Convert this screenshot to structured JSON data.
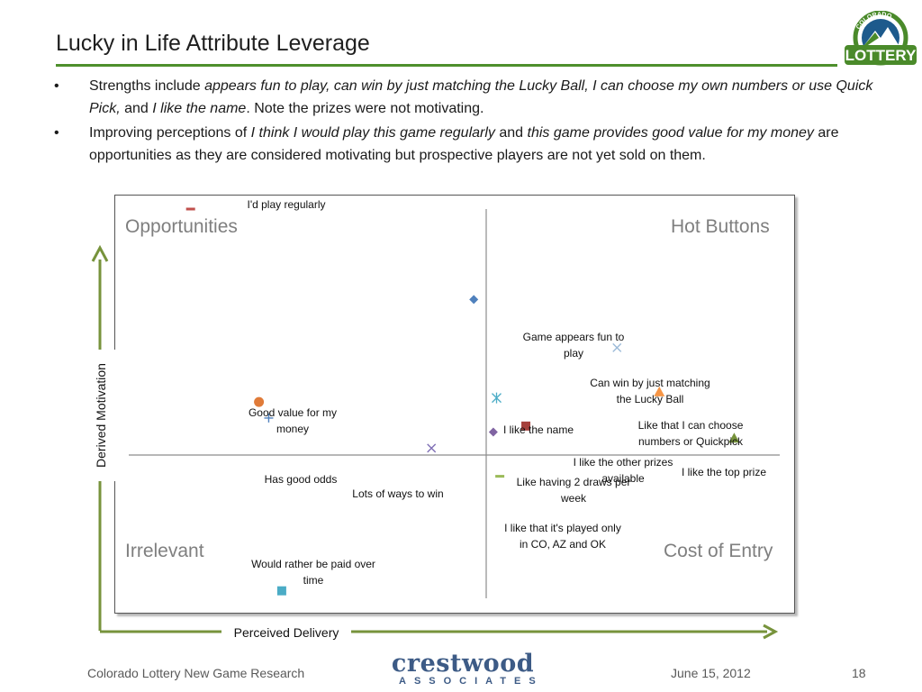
{
  "slide": {
    "title": "Lucky in Life Attribute Leverage",
    "bullet_glyph": "•",
    "bullets": [
      {
        "parts": [
          {
            "text": "Strengths include ",
            "italic": false
          },
          {
            "text": "appears fun to play, can win by just matching the Lucky Ball, I can choose my own numbers or use Quick Pick,",
            "italic": true
          },
          {
            "text": " and ",
            "italic": false
          },
          {
            "text": "I like the name",
            "italic": true
          },
          {
            "text": ".  Note the prizes were not motivating.",
            "italic": false
          }
        ]
      },
      {
        "parts": [
          {
            "text": "Improving perceptions of ",
            "italic": false
          },
          {
            "text": "I think I would play this game regularly",
            "italic": true
          },
          {
            "text": " and ",
            "italic": false
          },
          {
            "text": "this game provides good value for my money",
            "italic": true
          },
          {
            "text": " are opportunities as they are considered motivating but prospective players are not yet sold on them.",
            "italic": false
          }
        ]
      }
    ]
  },
  "logo": {
    "top_text": "COLORADO",
    "main_text": "LOTTERY",
    "colors": {
      "green": "#4a8a2a",
      "blue": "#1d5a8c",
      "white": "#ffffff"
    }
  },
  "axes": {
    "y_label": "Derived Motivation",
    "x_label": "Perceived Delivery",
    "arrow_color": "#77933c"
  },
  "chart_data": {
    "type": "scatter",
    "xlabel": "Perceived Delivery",
    "ylabel": "Derived Motivation",
    "xlim": [
      -1,
      1
    ],
    "ylim": [
      -1,
      1
    ],
    "grid": false,
    "quadrants": {
      "top_left": "Opportunities",
      "top_right": "Hot Buttons",
      "bottom_left": "Irrelevant",
      "bottom_right": "Cost of Entry"
    },
    "points": [
      {
        "label": "I'd play regularly",
        "x": -0.81,
        "y": 1.0,
        "marker": "dash",
        "color": "#c0504d"
      },
      {
        "label": "Game appears fun to play",
        "x": 0.06,
        "y": 0.55,
        "marker": "diamond",
        "color": "#4f81bd"
      },
      {
        "label": "Can win by just matching the Lucky Ball",
        "x": 0.5,
        "y": 0.31,
        "marker": "x",
        "color": "#9bbad8"
      },
      {
        "label": "Like that I can choose numbers or Quickpick",
        "x": 0.63,
        "y": 0.09,
        "marker": "triangle",
        "color": "#f79646"
      },
      {
        "label": "I like the name",
        "x": 0.13,
        "y": 0.06,
        "marker": "star",
        "color": "#4bacc6"
      },
      {
        "label": "Good value for my money",
        "x": -0.6,
        "y": 0.04,
        "marker": "circle",
        "color": "#e07b39"
      },
      {
        "label": "Has good odds",
        "x": -0.57,
        "y": -0.04,
        "marker": "plus",
        "color": "#4f81bd"
      },
      {
        "label": "I like the other prizes available",
        "x": 0.22,
        "y": -0.08,
        "marker": "square",
        "color": "#a5403c"
      },
      {
        "label": "Like having 2 draws per week",
        "x": 0.12,
        "y": -0.11,
        "marker": "diamond",
        "color": "#8064a2"
      },
      {
        "label": "I like the top prize",
        "x": 0.86,
        "y": -0.14,
        "marker": "triangle",
        "color": "#77933c"
      },
      {
        "label": "Lots of ways to win",
        "x": -0.07,
        "y": -0.19,
        "marker": "x",
        "color": "#7f6fb5"
      },
      {
        "label": "I like that it's played only in CO, AZ and OK",
        "x": 0.14,
        "y": -0.33,
        "marker": "dash",
        "color": "#9bbb59"
      },
      {
        "label": "Would rather be paid over time",
        "x": -0.53,
        "y": -0.9,
        "marker": "square",
        "color": "#4bacc6"
      }
    ]
  },
  "footer": {
    "left": "Colorado Lottery New Game Research",
    "brand": "crestwood",
    "brand_sub": "ASSOCIATES",
    "date": "June 15, 2012",
    "page": "18"
  }
}
